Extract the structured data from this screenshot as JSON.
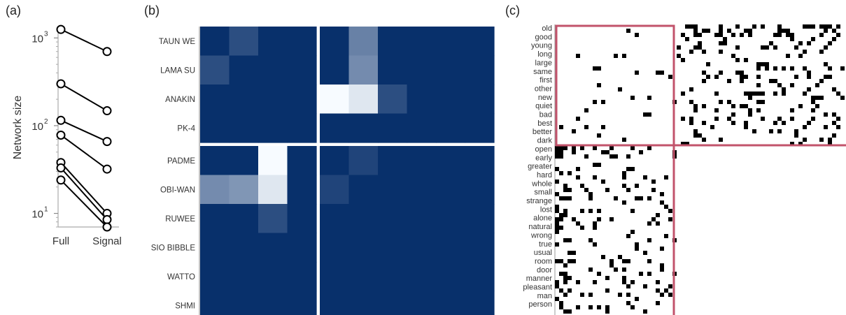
{
  "panels": {
    "a": {
      "label": "(a)"
    },
    "b": {
      "label": "(b)"
    },
    "c": {
      "label": "(c)"
    }
  },
  "chart_data": [
    {
      "panel": "(a)",
      "type": "line",
      "ylabel": "Network size",
      "yscale": "log",
      "ylim": [
        7,
        1300
      ],
      "y_ticks": [
        10,
        100,
        1000
      ],
      "y_tick_labels": [
        "10",
        "10",
        "10"
      ],
      "y_tick_exponents": [
        "1",
        "2",
        "3"
      ],
      "categories": [
        "Full",
        "Signal"
      ],
      "series": [
        {
          "values": [
            1250,
            700
          ]
        },
        {
          "values": [
            300,
            148
          ]
        },
        {
          "values": [
            115,
            66
          ]
        },
        {
          "values": [
            78,
            32
          ]
        },
        {
          "values": [
            38,
            10
          ]
        },
        {
          "values": [
            33,
            8.5
          ]
        },
        {
          "values": [
            24,
            7
          ]
        }
      ]
    },
    {
      "panel": "(b)",
      "type": "heatmap",
      "row_labels": [
        "TAUN WE",
        "LAMA SU",
        "ANAKIN",
        "PK-4",
        "PADME",
        "OBI-WAN",
        "RUWEE",
        "SIO BIBBLE",
        "WATTO",
        "SHMI"
      ],
      "col_groups": [
        4,
        6
      ],
      "row_groups": [
        4,
        6
      ],
      "matrix": [
        [
          0.0,
          0.15,
          0.0,
          0.0,
          0.0,
          0.4,
          0.0,
          0.0,
          0.0,
          0.0
        ],
        [
          0.15,
          0.0,
          0.0,
          0.0,
          0.0,
          0.45,
          0.0,
          0.0,
          0.0,
          0.0
        ],
        [
          0.0,
          0.0,
          0.0,
          0.0,
          1.0,
          0.9,
          0.15,
          0.0,
          0.0,
          0.0
        ],
        [
          0.0,
          0.0,
          0.0,
          0.0,
          0.0,
          0.0,
          0.0,
          0.0,
          0.0,
          0.0
        ],
        [
          0.0,
          0.0,
          1.0,
          0.0,
          0.0,
          0.1,
          0.0,
          0.0,
          0.0,
          0.0
        ],
        [
          0.45,
          0.5,
          0.9,
          0.0,
          0.1,
          0.0,
          0.0,
          0.0,
          0.0,
          0.0
        ],
        [
          0.0,
          0.0,
          0.15,
          0.0,
          0.0,
          0.0,
          0.0,
          0.0,
          0.0,
          0.0
        ],
        [
          0.0,
          0.0,
          0.0,
          0.0,
          0.0,
          0.0,
          0.0,
          0.0,
          0.0,
          0.0
        ],
        [
          0.0,
          0.0,
          0.0,
          0.0,
          0.0,
          0.0,
          0.0,
          0.0,
          0.0,
          0.0
        ],
        [
          0.0,
          0.0,
          0.0,
          0.0,
          0.0,
          0.0,
          0.0,
          0.0,
          0.0,
          0.0
        ]
      ],
      "colors": {
        "low": "#08306b",
        "high": "#f7fbff",
        "divider": "#ffffff"
      }
    },
    {
      "panel": "(c)",
      "type": "heatmap",
      "row_labels": [
        "old",
        "good",
        "young",
        "long",
        "large",
        "same",
        "first",
        "other",
        "new",
        "quiet",
        "bad",
        "best",
        "better",
        "dark",
        "open",
        "early",
        "greater",
        "hard",
        "whole",
        "small",
        "strange",
        "lost",
        "alone",
        "natural",
        "wrong",
        "true",
        "usual",
        "room",
        "door",
        "manner",
        "pleasant",
        "man",
        "person"
      ],
      "block_split_row": 14,
      "colors": {
        "cell": "#000000",
        "box": "#c2536b"
      }
    }
  ]
}
